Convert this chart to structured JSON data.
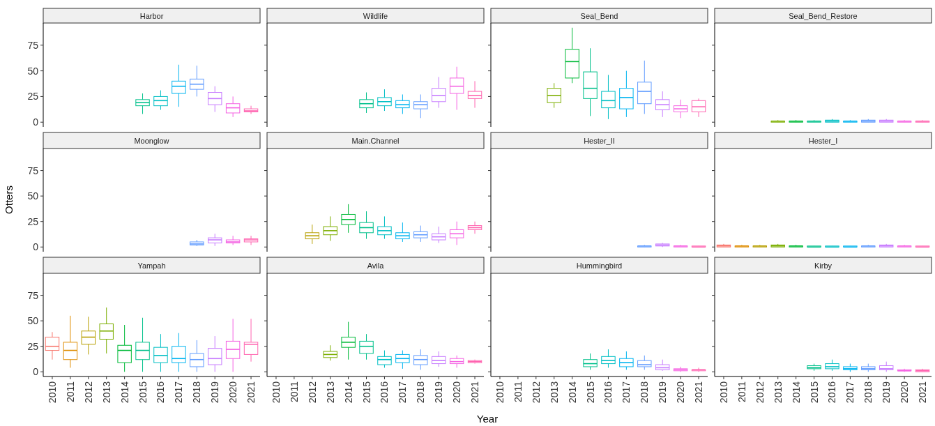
{
  "chart_data": [
    {
      "type": "box",
      "title": "Harbor",
      "tick_labels": "y",
      "categories": [
        "2010",
        "2011",
        "2012",
        "2013",
        "2014",
        "2015",
        "2016",
        "2017",
        "2018",
        "2019",
        "2020",
        "2021"
      ],
      "colors": [
        "#f8766d",
        "#de8c00",
        "#b79f00",
        "#7cae00",
        "#00ba38",
        "#00c08b",
        "#00bfc4",
        "#00b4f0",
        "#619cff",
        "#c77cff",
        "#f564e3",
        "#ff64b0"
      ],
      "ylim": [
        -4.6,
        96.6
      ],
      "yticks": [
        0,
        25,
        50,
        75
      ],
      "boxes": [
        null,
        null,
        null,
        null,
        null,
        {
          "low": 8,
          "q1": 16,
          "median": 19,
          "q3": 22,
          "high": 28
        },
        {
          "low": 12,
          "q1": 16,
          "median": 21,
          "q3": 25,
          "high": 31
        },
        {
          "low": 15,
          "q1": 28,
          "median": 35,
          "q3": 40,
          "high": 56
        },
        {
          "low": 25,
          "q1": 32,
          "median": 37,
          "q3": 42,
          "high": 55
        },
        {
          "low": 10,
          "q1": 17,
          "median": 23,
          "q3": 29,
          "high": 35
        },
        {
          "low": 5,
          "q1": 9,
          "median": 14,
          "q3": 18,
          "high": 25
        },
        {
          "low": 8,
          "q1": 10,
          "median": 11,
          "q3": 13,
          "high": 16
        }
      ]
    },
    {
      "type": "box",
      "title": "Wildlife",
      "tick_labels": false,
      "categories": [
        "2010",
        "2011",
        "2012",
        "2013",
        "2014",
        "2015",
        "2016",
        "2017",
        "2018",
        "2019",
        "2020",
        "2021"
      ],
      "colors": [
        "#f8766d",
        "#de8c00",
        "#b79f00",
        "#7cae00",
        "#00ba38",
        "#00c08b",
        "#00bfc4",
        "#00b4f0",
        "#619cff",
        "#c77cff",
        "#f564e3",
        "#ff64b0"
      ],
      "ylim": [
        -4.6,
        96.6
      ],
      "yticks": [
        0,
        25,
        50,
        75
      ],
      "boxes": [
        null,
        null,
        null,
        null,
        null,
        {
          "low": 9,
          "q1": 14,
          "median": 18,
          "q3": 22,
          "high": 29
        },
        {
          "low": 11,
          "q1": 16,
          "median": 20,
          "q3": 24,
          "high": 32
        },
        {
          "low": 8,
          "q1": 14,
          "median": 17,
          "q3": 21,
          "high": 27
        },
        {
          "low": 4,
          "q1": 13,
          "median": 17,
          "q3": 20,
          "high": 27
        },
        {
          "low": 14,
          "q1": 20,
          "median": 26,
          "q3": 33,
          "high": 44
        },
        {
          "low": 12,
          "q1": 28,
          "median": 35,
          "q3": 43,
          "high": 54
        },
        {
          "low": 14,
          "q1": 23,
          "median": 26,
          "q3": 30,
          "high": 40
        }
      ]
    },
    {
      "type": "box",
      "title": "Seal_Bend",
      "tick_labels": false,
      "categories": [
        "2010",
        "2011",
        "2012",
        "2013",
        "2014",
        "2015",
        "2016",
        "2017",
        "2018",
        "2019",
        "2020",
        "2021"
      ],
      "colors": [
        "#f8766d",
        "#de8c00",
        "#b79f00",
        "#7cae00",
        "#00ba38",
        "#00c08b",
        "#00bfc4",
        "#00b4f0",
        "#619cff",
        "#c77cff",
        "#f564e3",
        "#ff64b0"
      ],
      "ylim": [
        -4.6,
        96.6
      ],
      "yticks": [
        0,
        25,
        50,
        75
      ],
      "boxes": [
        null,
        null,
        null,
        {
          "low": 14,
          "q1": 19,
          "median": 26,
          "q3": 33,
          "high": 38
        },
        {
          "low": 38,
          "q1": 43,
          "median": 59,
          "q3": 71,
          "high": 92
        },
        {
          "low": 6,
          "q1": 23,
          "median": 33,
          "q3": 49,
          "high": 72
        },
        {
          "low": 3,
          "q1": 14,
          "median": 21,
          "q3": 30,
          "high": 46
        },
        {
          "low": 5,
          "q1": 13,
          "median": 24,
          "q3": 33,
          "high": 50
        },
        {
          "low": 8,
          "q1": 18,
          "median": 30,
          "q3": 39,
          "high": 60
        },
        {
          "low": 5,
          "q1": 12,
          "median": 17,
          "q3": 22,
          "high": 30
        },
        {
          "low": 4,
          "q1": 10,
          "median": 13,
          "q3": 16,
          "high": 22
        },
        {
          "low": 5,
          "q1": 10,
          "median": 15,
          "q3": 21,
          "high": 23
        }
      ]
    },
    {
      "type": "box",
      "title": "Seal_Bend_Restore",
      "tick_labels": false,
      "categories": [
        "2010",
        "2011",
        "2012",
        "2013",
        "2014",
        "2015",
        "2016",
        "2017",
        "2018",
        "2019",
        "2020",
        "2021"
      ],
      "colors": [
        "#f8766d",
        "#de8c00",
        "#b79f00",
        "#7cae00",
        "#00ba38",
        "#00c08b",
        "#00bfc4",
        "#00b4f0",
        "#619cff",
        "#c77cff",
        "#f564e3",
        "#ff64b0"
      ],
      "ylim": [
        -4.6,
        96.6
      ],
      "yticks": [
        0,
        25,
        50,
        75
      ],
      "boxes": [
        null,
        null,
        null,
        {
          "low": 0,
          "q1": 0,
          "median": 1,
          "q3": 1,
          "high": 2
        },
        {
          "low": 0,
          "q1": 0,
          "median": 1,
          "q3": 1,
          "high": 2
        },
        {
          "low": 0,
          "q1": 0,
          "median": 1,
          "q3": 1,
          "high": 2
        },
        {
          "low": 0,
          "q1": 0,
          "median": 1,
          "q3": 2,
          "high": 3
        },
        {
          "low": 0,
          "q1": 0,
          "median": 1,
          "q3": 1,
          "high": 2
        },
        {
          "low": 0,
          "q1": 0,
          "median": 1,
          "q3": 2,
          "high": 3
        },
        {
          "low": 0,
          "q1": 0,
          "median": 1,
          "q3": 2,
          "high": 3
        },
        {
          "low": 0,
          "q1": 0,
          "median": 1,
          "q3": 1,
          "high": 2
        },
        {
          "low": 0,
          "q1": 0,
          "median": 1,
          "q3": 1,
          "high": 2
        }
      ]
    },
    {
      "type": "box",
      "title": "Moonglow",
      "tick_labels": "y",
      "ylabel": "Otters",
      "categories": [
        "2010",
        "2011",
        "2012",
        "2013",
        "2014",
        "2015",
        "2016",
        "2017",
        "2018",
        "2019",
        "2020",
        "2021"
      ],
      "colors": [
        "#f8766d",
        "#de8c00",
        "#b79f00",
        "#7cae00",
        "#00ba38",
        "#00c08b",
        "#00bfc4",
        "#00b4f0",
        "#619cff",
        "#c77cff",
        "#f564e3",
        "#ff64b0"
      ],
      "ylim": [
        -4.6,
        96.6
      ],
      "yticks": [
        0,
        25,
        50,
        75
      ],
      "boxes": [
        null,
        null,
        null,
        null,
        null,
        null,
        null,
        null,
        {
          "low": 1,
          "q1": 2,
          "median": 3,
          "q3": 5,
          "high": 7
        },
        {
          "low": 1,
          "q1": 4,
          "median": 7,
          "q3": 9,
          "high": 13
        },
        {
          "low": 2,
          "q1": 4,
          "median": 5,
          "q3": 7,
          "high": 11
        },
        {
          "low": 2,
          "q1": 5,
          "median": 7,
          "q3": 8,
          "high": 11
        }
      ]
    },
    {
      "type": "box",
      "title": "Main.Channel",
      "tick_labels": false,
      "categories": [
        "2010",
        "2011",
        "2012",
        "2013",
        "2014",
        "2015",
        "2016",
        "2017",
        "2018",
        "2019",
        "2020",
        "2021"
      ],
      "colors": [
        "#f8766d",
        "#de8c00",
        "#b79f00",
        "#7cae00",
        "#00ba38",
        "#00c08b",
        "#00bfc4",
        "#00b4f0",
        "#619cff",
        "#c77cff",
        "#f564e3",
        "#ff64b0"
      ],
      "ylim": [
        -4.6,
        96.6
      ],
      "yticks": [
        0,
        25,
        50,
        75
      ],
      "boxes": [
        null,
        null,
        {
          "low": 3,
          "q1": 8,
          "median": 11,
          "q3": 14,
          "high": 22
        },
        {
          "low": 6,
          "q1": 12,
          "median": 16,
          "q3": 20,
          "high": 30
        },
        {
          "low": 14,
          "q1": 22,
          "median": 27,
          "q3": 32,
          "high": 42
        },
        {
          "low": 8,
          "q1": 14,
          "median": 19,
          "q3": 24,
          "high": 35
        },
        {
          "low": 8,
          "q1": 12,
          "median": 16,
          "q3": 20,
          "high": 30
        },
        {
          "low": 5,
          "q1": 8,
          "median": 11,
          "q3": 14,
          "high": 24
        },
        {
          "low": 5,
          "q1": 9,
          "median": 12,
          "q3": 15,
          "high": 21
        },
        {
          "low": 4,
          "q1": 7,
          "median": 10,
          "q3": 13,
          "high": 20
        },
        {
          "low": 2,
          "q1": 9,
          "median": 13,
          "q3": 17,
          "high": 25
        },
        {
          "low": 13,
          "q1": 17,
          "median": 19,
          "q3": 21,
          "high": 25
        }
      ]
    },
    {
      "type": "box",
      "title": "Hester_II",
      "tick_labels": false,
      "categories": [
        "2010",
        "2011",
        "2012",
        "2013",
        "2014",
        "2015",
        "2016",
        "2017",
        "2018",
        "2019",
        "2020",
        "2021"
      ],
      "colors": [
        "#f8766d",
        "#de8c00",
        "#b79f00",
        "#7cae00",
        "#00ba38",
        "#00c08b",
        "#00bfc4",
        "#00b4f0",
        "#619cff",
        "#c77cff",
        "#f564e3",
        "#ff64b0"
      ],
      "ylim": [
        -4.6,
        96.6
      ],
      "yticks": [
        0,
        25,
        50,
        75
      ],
      "boxes": [
        null,
        null,
        null,
        null,
        null,
        null,
        null,
        null,
        {
          "low": 0,
          "q1": 0,
          "median": 1,
          "q3": 1,
          "high": 2
        },
        {
          "low": 0,
          "q1": 1,
          "median": 2,
          "q3": 3,
          "high": 4
        },
        {
          "low": 0,
          "q1": 0,
          "median": 1,
          "q3": 1,
          "high": 2
        },
        {
          "low": 0,
          "q1": 0,
          "median": 0,
          "q3": 1,
          "high": 1
        }
      ]
    },
    {
      "type": "box",
      "title": "Hester_I",
      "tick_labels": false,
      "categories": [
        "2010",
        "2011",
        "2012",
        "2013",
        "2014",
        "2015",
        "2016",
        "2017",
        "2018",
        "2019",
        "2020",
        "2021"
      ],
      "colors": [
        "#f8766d",
        "#de8c00",
        "#b79f00",
        "#7cae00",
        "#00ba38",
        "#00c08b",
        "#00bfc4",
        "#00b4f0",
        "#619cff",
        "#c77cff",
        "#f564e3",
        "#ff64b0"
      ],
      "ylim": [
        -4.6,
        96.6
      ],
      "yticks": [
        0,
        25,
        50,
        75
      ],
      "boxes": [
        {
          "low": 0,
          "q1": 0,
          "median": 1,
          "q3": 2,
          "high": 3
        },
        {
          "low": 0,
          "q1": 0,
          "median": 1,
          "q3": 1,
          "high": 2
        },
        {
          "low": 0,
          "q1": 0,
          "median": 1,
          "q3": 1,
          "high": 2
        },
        {
          "low": 0,
          "q1": 0,
          "median": 1,
          "q3": 2,
          "high": 3
        },
        {
          "low": 0,
          "q1": 0,
          "median": 1,
          "q3": 1,
          "high": 2
        },
        {
          "low": 0,
          "q1": 0,
          "median": 0,
          "q3": 1,
          "high": 1
        },
        {
          "low": 0,
          "q1": 0,
          "median": 0,
          "q3": 1,
          "high": 1
        },
        {
          "low": 0,
          "q1": 0,
          "median": 0,
          "q3": 1,
          "high": 1
        },
        {
          "low": 0,
          "q1": 0,
          "median": 1,
          "q3": 1,
          "high": 2
        },
        {
          "low": 0,
          "q1": 0,
          "median": 1,
          "q3": 2,
          "high": 3
        },
        {
          "low": 0,
          "q1": 0,
          "median": 1,
          "q3": 1,
          "high": 2
        },
        {
          "low": 0,
          "q1": 0,
          "median": 0,
          "q3": 1,
          "high": 1
        }
      ]
    },
    {
      "type": "box",
      "title": "Yampah",
      "categories": [
        "2010",
        "2011",
        "2012",
        "2013",
        "2014",
        "2015",
        "2016",
        "2017",
        "2018",
        "2019",
        "2020",
        "2021"
      ],
      "colors": [
        "#f8766d",
        "#de8c00",
        "#b79f00",
        "#7cae00",
        "#00ba38",
        "#00c08b",
        "#00bfc4",
        "#00b4f0",
        "#619cff",
        "#c77cff",
        "#f564e3",
        "#ff64b0"
      ],
      "ylim": [
        -4.6,
        96.6
      ],
      "yticks": [
        0,
        25,
        50,
        75
      ],
      "boxes": [
        {
          "low": 12,
          "q1": 21,
          "median": 25,
          "q3": 34,
          "high": 39
        },
        {
          "low": 4,
          "q1": 12,
          "median": 21,
          "q3": 29,
          "high": 55
        },
        {
          "low": 17,
          "q1": 27,
          "median": 34,
          "q3": 40,
          "high": 54
        },
        {
          "low": 18,
          "q1": 32,
          "median": 40,
          "q3": 47,
          "high": 63
        },
        {
          "low": 0,
          "q1": 9,
          "median": 21,
          "q3": 26,
          "high": 46
        },
        {
          "low": 0,
          "q1": 12,
          "median": 21,
          "q3": 29,
          "high": 53
        },
        {
          "low": 0,
          "q1": 9,
          "median": 16,
          "q3": 24,
          "high": 37
        },
        {
          "low": 0,
          "q1": 9,
          "median": 13,
          "q3": 25,
          "high": 38
        },
        {
          "low": 0,
          "q1": 5,
          "median": 12,
          "q3": 18,
          "high": 31
        },
        {
          "low": 0,
          "q1": 7,
          "median": 13,
          "q3": 23,
          "high": 35
        },
        {
          "low": 0,
          "q1": 13,
          "median": 22,
          "q3": 30,
          "high": 52
        },
        {
          "low": 10,
          "q1": 17,
          "median": 27,
          "q3": 29,
          "high": 52
        }
      ]
    },
    {
      "type": "box",
      "title": "Avila",
      "tick_labels": "x",
      "xlabel": "Year",
      "categories": [
        "2010",
        "2011",
        "2012",
        "2013",
        "2014",
        "2015",
        "2016",
        "2017",
        "2018",
        "2019",
        "2020",
        "2021"
      ],
      "colors": [
        "#f8766d",
        "#de8c00",
        "#b79f00",
        "#7cae00",
        "#00ba38",
        "#00c08b",
        "#00bfc4",
        "#00b4f0",
        "#619cff",
        "#c77cff",
        "#f564e3",
        "#ff64b0"
      ],
      "ylim": [
        -4.6,
        96.6
      ],
      "yticks": [
        0,
        25,
        50,
        75
      ],
      "boxes": [
        null,
        null,
        null,
        {
          "low": 11,
          "q1": 14,
          "median": 17,
          "q3": 20,
          "high": 26
        },
        {
          "low": 12,
          "q1": 24,
          "median": 29,
          "q3": 34,
          "high": 49
        },
        {
          "low": 12,
          "q1": 18,
          "median": 25,
          "q3": 30,
          "high": 37
        },
        {
          "low": 4,
          "q1": 7,
          "median": 12,
          "q3": 15,
          "high": 21
        },
        {
          "low": 3,
          "q1": 9,
          "median": 13,
          "q3": 17,
          "high": 21
        },
        {
          "low": 2,
          "q1": 7,
          "median": 12,
          "q3": 16,
          "high": 22
        },
        {
          "low": 5,
          "q1": 8,
          "median": 11,
          "q3": 15,
          "high": 20
        },
        {
          "low": 4,
          "q1": 8,
          "median": 10,
          "q3": 13,
          "high": 16
        },
        {
          "low": 8,
          "q1": 9,
          "median": 10,
          "q3": 11,
          "high": 12
        }
      ]
    },
    {
      "type": "box",
      "title": "Hummingbird",
      "tick_labels": "x",
      "categories": [
        "2010",
        "2011",
        "2012",
        "2013",
        "2014",
        "2015",
        "2016",
        "2017",
        "2018",
        "2019",
        "2020",
        "2021"
      ],
      "colors": [
        "#f8766d",
        "#de8c00",
        "#b79f00",
        "#7cae00",
        "#00ba38",
        "#00c08b",
        "#00bfc4",
        "#00b4f0",
        "#619cff",
        "#c77cff",
        "#f564e3",
        "#ff64b0"
      ],
      "ylim": [
        -4.6,
        96.6
      ],
      "yticks": [
        0,
        25,
        50,
        75
      ],
      "boxes": [
        null,
        null,
        null,
        null,
        null,
        {
          "low": 2,
          "q1": 5,
          "median": 8,
          "q3": 12,
          "high": 18
        },
        {
          "low": 4,
          "q1": 8,
          "median": 11,
          "q3": 15,
          "high": 22
        },
        {
          "low": 2,
          "q1": 5,
          "median": 9,
          "q3": 13,
          "high": 20
        },
        {
          "low": 2,
          "q1": 5,
          "median": 7,
          "q3": 11,
          "high": 16
        },
        {
          "low": 1,
          "q1": 2,
          "median": 4,
          "q3": 7,
          "high": 12
        },
        {
          "low": 0,
          "q1": 1,
          "median": 2,
          "q3": 3,
          "high": 5
        },
        {
          "low": 0,
          "q1": 1,
          "median": 2,
          "q3": 2,
          "high": 4
        }
      ]
    },
    {
      "type": "box",
      "title": "Kirby",
      "tick_labels": "x",
      "categories": [
        "2010",
        "2011",
        "2012",
        "2013",
        "2014",
        "2015",
        "2016",
        "2017",
        "2018",
        "2019",
        "2020",
        "2021"
      ],
      "colors": [
        "#f8766d",
        "#de8c00",
        "#b79f00",
        "#7cae00",
        "#00ba38",
        "#00c08b",
        "#00bfc4",
        "#00b4f0",
        "#619cff",
        "#c77cff",
        "#f564e3",
        "#ff64b0"
      ],
      "ylim": [
        -4.6,
        96.6
      ],
      "yticks": [
        0,
        25,
        50,
        75
      ],
      "boxes": [
        null,
        null,
        null,
        null,
        null,
        {
          "low": 1,
          "q1": 3,
          "median": 4,
          "q3": 6,
          "high": 8
        },
        {
          "low": 1,
          "q1": 3,
          "median": 5,
          "q3": 8,
          "high": 12
        },
        {
          "low": 0,
          "q1": 2,
          "median": 3,
          "q3": 5,
          "high": 8
        },
        {
          "low": 0,
          "q1": 2,
          "median": 3,
          "q3": 5,
          "high": 8
        },
        {
          "low": 0,
          "q1": 2,
          "median": 3,
          "q3": 6,
          "high": 10
        },
        {
          "low": 0,
          "q1": 1,
          "median": 1,
          "q3": 2,
          "high": 3
        },
        {
          "low": 0,
          "q1": 0,
          "median": 1,
          "q3": 2,
          "high": 3
        }
      ]
    }
  ]
}
